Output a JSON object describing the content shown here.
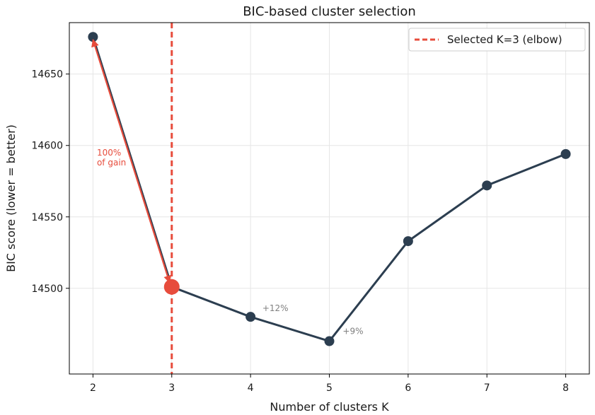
{
  "chart_data": {
    "type": "line",
    "title": "BIC-based cluster selection",
    "xlabel": "Number of clusters K",
    "ylabel": "BIC score (lower = better)",
    "x": [
      2,
      3,
      4,
      5,
      6,
      7,
      8
    ],
    "series": [
      {
        "values": [
          14676,
          14501,
          14480,
          14463,
          14533,
          14572,
          14594
        ]
      }
    ],
    "xlim": [
      1.7,
      8.3
    ],
    "ylim": [
      14440,
      14686
    ],
    "xticks": [
      "2",
      "3",
      "4",
      "5",
      "6",
      "7",
      "8"
    ],
    "yticks": [
      14500,
      14550,
      14600,
      14650
    ],
    "ytick_labels": [
      "14500",
      "14550",
      "14600",
      "14650"
    ],
    "grid": true,
    "selected_k": 3,
    "legend": {
      "position": "top-right",
      "entries": [
        "Selected K=3 (elbow)"
      ]
    },
    "annotations": [
      {
        "text_lines": [
          "100%",
          "of gain"
        ],
        "color": "#e74c3c",
        "x": 2.05,
        "y": 14593
      },
      {
        "text_lines": [
          "+12%"
        ],
        "color": "#7f7f7f",
        "x": 4.15,
        "y": 14484
      },
      {
        "text_lines": [
          "+9%"
        ],
        "color": "#7f7f7f",
        "x": 5.17,
        "y": 14468
      }
    ],
    "colors": {
      "line": "#2c3e50",
      "selected": "#e74c3c",
      "grid": "#e6e6e6"
    }
  }
}
